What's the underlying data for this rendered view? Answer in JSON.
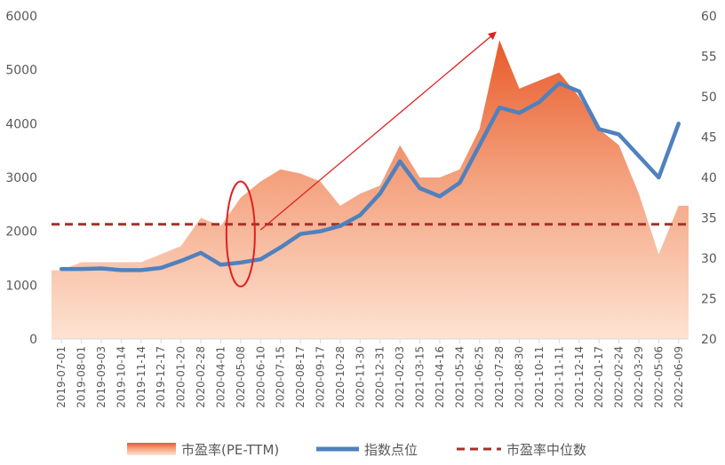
{
  "chart_data": {
    "type": "line",
    "title": "",
    "xlabel": "",
    "ylabel": "",
    "ylim_left": [
      0,
      6000
    ],
    "ylim_right": [
      20,
      60
    ],
    "yticks_left": [
      0,
      1000,
      2000,
      3000,
      4000,
      5000,
      6000
    ],
    "yticks_right": [
      20,
      25,
      30,
      35,
      40,
      45,
      50,
      55,
      60
    ],
    "grid": false,
    "legend_position": "bottom",
    "colors": {
      "pe_top": "#e85a2a",
      "pe_bottom": "#fde3d3",
      "index_line": "#4f81bd",
      "median_line": "#a0332c",
      "annotation": "#e02020"
    },
    "categories": [
      "2019-07-01",
      "2019-08-01",
      "2019-09-03",
      "2019-10-14",
      "2019-11-14",
      "2019-12-17",
      "2020-01-20",
      "2020-02-28",
      "2020-04-01",
      "2020-05-08",
      "2020-06-10",
      "2020-07-15",
      "2020-08-17",
      "2020-09-17",
      "2020-10-28",
      "2020-11-30",
      "2020-12-31",
      "2021-02-03",
      "2021-03-15",
      "2021-04-16",
      "2021-05-24",
      "2021-06-25",
      "2021-07-28",
      "2021-08-30",
      "2021-10-11",
      "2021-11-11",
      "2021-12-14",
      "2022-01-17",
      "2022-02-24",
      "2022-03-29",
      "2022-05-06",
      "2022-06-09"
    ],
    "series": [
      {
        "name": "市盈率(PE-TTM)",
        "axis": "right",
        "type": "area",
        "values": [
          28.5,
          29.5,
          29.5,
          29.5,
          29.5,
          30.5,
          31.5,
          35.0,
          34.0,
          37.5,
          39.5,
          41.0,
          40.5,
          39.5,
          36.5,
          38.0,
          39.0,
          44.0,
          40.0,
          40.0,
          41.0,
          46.0,
          57.0,
          51.0,
          52.0,
          53.0,
          50.0,
          46.0,
          44.0,
          38.0,
          30.5,
          36.5
        ]
      },
      {
        "name": "指数点位",
        "axis": "left",
        "type": "line",
        "values": [
          1300,
          1300,
          1310,
          1280,
          1280,
          1320,
          1450,
          1600,
          1380,
          1420,
          1480,
          1700,
          1950,
          2000,
          2100,
          2300,
          2700,
          3300,
          2800,
          2650,
          2900,
          3600,
          4300,
          4200,
          4400,
          4750,
          4600,
          3900,
          3800,
          3400,
          3000,
          4000
        ]
      },
      {
        "name": "市盈率中位数",
        "axis": "right",
        "type": "line",
        "dashed": true,
        "values": [
          34.2,
          34.2,
          34.2,
          34.2,
          34.2,
          34.2,
          34.2,
          34.2,
          34.2,
          34.2,
          34.2,
          34.2,
          34.2,
          34.2,
          34.2,
          34.2,
          34.2,
          34.2,
          34.2,
          34.2,
          34.2,
          34.2,
          34.2,
          34.2,
          34.2,
          34.2,
          34.2,
          34.2,
          34.2,
          34.2,
          34.2,
          34.2
        ]
      }
    ],
    "annotations": [
      {
        "type": "ellipse",
        "around_category": "2020-05-08",
        "y_range_right": [
          26.5,
          39.5
        ]
      },
      {
        "type": "arrow",
        "from": {
          "x": "2020-06-10",
          "y_right": 33.5
        },
        "to": {
          "x": "2021-07-28",
          "y_right": 58.0
        }
      }
    ]
  }
}
